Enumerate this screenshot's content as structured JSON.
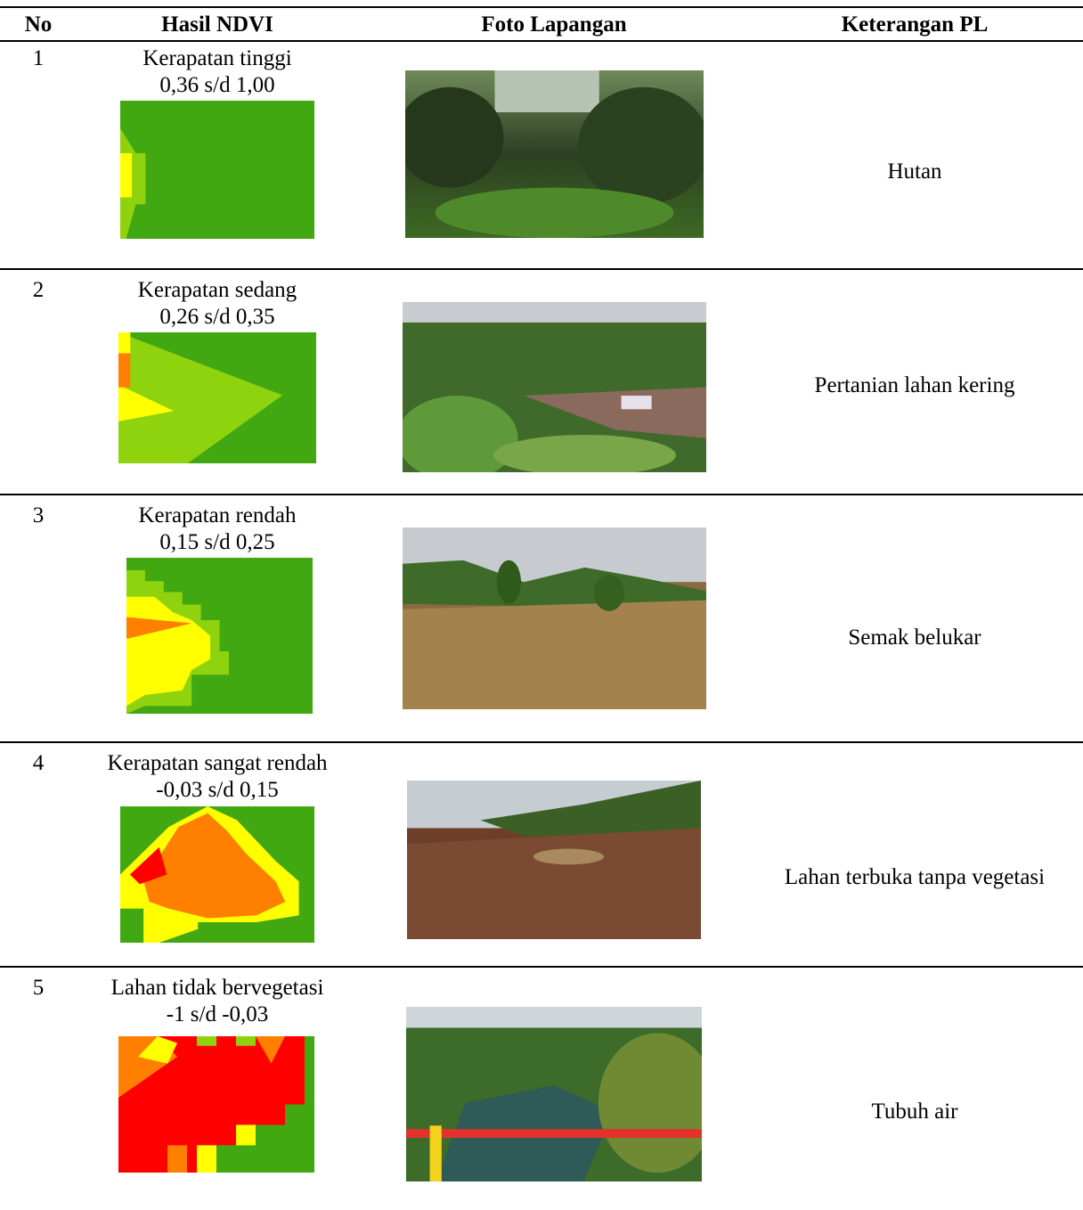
{
  "table": {
    "header": [
      "No",
      "Hasil NDVI",
      "Foto Lapangan",
      "Keterangan PL"
    ],
    "rows": [
      {
        "no": "1",
        "ndvi_class": "Kerapatan tinggi",
        "ndvi_range": "0,36 s/d 1,00",
        "keterangan": "Hutan"
      },
      {
        "no": "2",
        "ndvi_class": "Kerapatan sedang",
        "ndvi_range": "0,26 s/d 0,35",
        "keterangan": "Pertanian lahan kering"
      },
      {
        "no": "3",
        "ndvi_class": "Kerapatan rendah",
        "ndvi_range": "0,15 s/d 0,25",
        "keterangan": "Semak belukar"
      },
      {
        "no": "4",
        "ndvi_class": "Kerapatan sangat rendah",
        "ndvi_range": "-0,03 s/d 0,15",
        "keterangan": "Lahan terbuka tanpa vegetasi"
      },
      {
        "no": "5",
        "ndvi_class": "Lahan tidak bervegetasi",
        "ndvi_range": "-1 s/d -0,03",
        "keterangan": "Tubuh air"
      }
    ]
  }
}
